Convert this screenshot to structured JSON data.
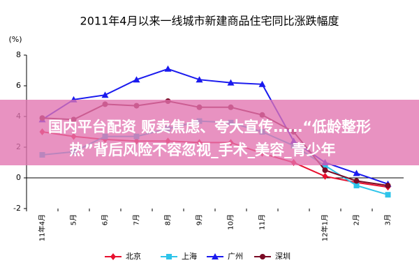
{
  "chart_data": {
    "type": "line",
    "title": "2011年4月以来一线城市新建商品住宅同比涨跌幅度",
    "y_label": "(%)",
    "categories": [
      "11年4月",
      "5月",
      "6月",
      "7月",
      "8月",
      "9月",
      "10月",
      "11月",
      null,
      "12年1月",
      "2月",
      "3月"
    ],
    "series": [
      {
        "name": "北京",
        "color": "#e8102e",
        "marker": "diamond",
        "values": [
          3.0,
          2.7,
          2.5,
          2.4,
          2.4,
          2.3,
          2.3,
          1.6,
          1.0,
          0.1,
          -0.3,
          -0.6
        ]
      },
      {
        "name": "上海",
        "color": "#2ec4ea",
        "marker": "square",
        "values": [
          1.5,
          1.7,
          2.7,
          2.7,
          3.2,
          3.7,
          3.6,
          3.0,
          2.1,
          0.8,
          -0.5,
          -1.1
        ]
      },
      {
        "name": "广州",
        "color": "#1a1aee",
        "marker": "triangle",
        "values": [
          3.8,
          5.1,
          5.4,
          6.4,
          7.1,
          6.4,
          6.2,
          6.1,
          2.4,
          1.0,
          0.3,
          -0.4
        ]
      },
      {
        "name": "深圳",
        "color": "#7a0a24",
        "marker": "circle",
        "values": [
          3.9,
          3.8,
          4.8,
          4.7,
          5.0,
          4.6,
          4.6,
          4.1,
          3.0,
          0.5,
          -0.2,
          -0.5
        ]
      }
    ],
    "ylim": [
      -2,
      8
    ],
    "yticks": [
      -2,
      0,
      2,
      4,
      6,
      8
    ],
    "legend": "bottom"
  },
  "overlay": {
    "lines": [
      "国内平台配资 贩卖焦虑、夸大宣传……“低龄整形",
      "热”背后风险不容忽视_手术_美容_青少年"
    ]
  }
}
